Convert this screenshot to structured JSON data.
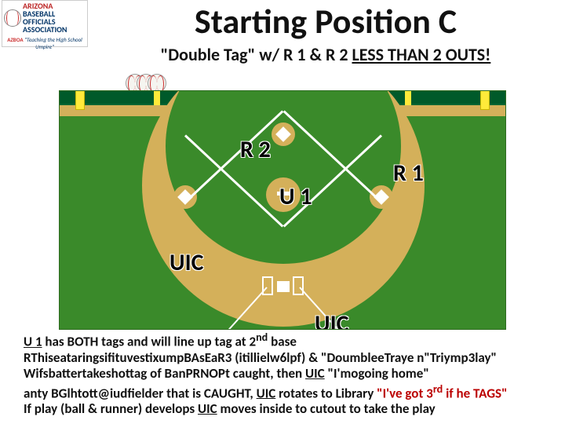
{
  "logo": {
    "line1": "ARIZONA",
    "line2": "BASEBALL",
    "line3": "OFFICIALS",
    "line4": "ASSOCIATION",
    "sub": "\"Teaching the High School Umpire\"",
    "abbr": "AZBOA"
  },
  "title": "Starting Position C",
  "subtitle_prefix": "\"Double Tag\" w/ R 1 & R 2 ",
  "subtitle_under": "LESS THAN 2 OUTS!",
  "labels": {
    "r2": "R 2",
    "r1": "R 1",
    "u1": "U 1",
    "uic1": "UIC",
    "uic2": "UIC"
  },
  "text": {
    "line1_a": "U 1",
    "line1_b": " has BOTH tags and will line up tag at 2",
    "line1_sup": "nd",
    "line1_c": " base",
    "line2": "RThiseataringsifituvestixumpBAsEaR3 (itillielw6lpf) & \"DoumbleeTraye n\"Triymp3lay\"",
    "line3_a": "Wifsbattertakeshottag of BanPRNOPt caught, then ",
    "line3_u": "UIC",
    "line3_b": " \"I'mogoing home\"",
    "line4_a": "anty BGlhtott@iudfielder that is CAUGHT, ",
    "line4_u": "UIC",
    "line4_b": " rotates to Library ",
    "line4_q": "\"I've got 3",
    "line4_sup": "rd",
    "line4_c": " if he TAGS\"",
    "line5_a": "If play (ball & runner) develops ",
    "line5_u": "UIC",
    "line5_b": " moves inside to cutout to take  the play"
  },
  "pos": {
    "r2": {
      "t": 56,
      "l": 230
    },
    "r1": {
      "t": 86,
      "l": 425
    },
    "u1": {
      "t": 116,
      "l": 280
    },
    "uic1": {
      "t": 200,
      "l": 140
    },
    "uic2": {
      "t": 278,
      "l": 325
    }
  },
  "colors": {
    "grass": "#3a8a2a",
    "dirt": "#d4b05a",
    "wall": "#005a2a",
    "foul_pole": "#ffea3a"
  }
}
